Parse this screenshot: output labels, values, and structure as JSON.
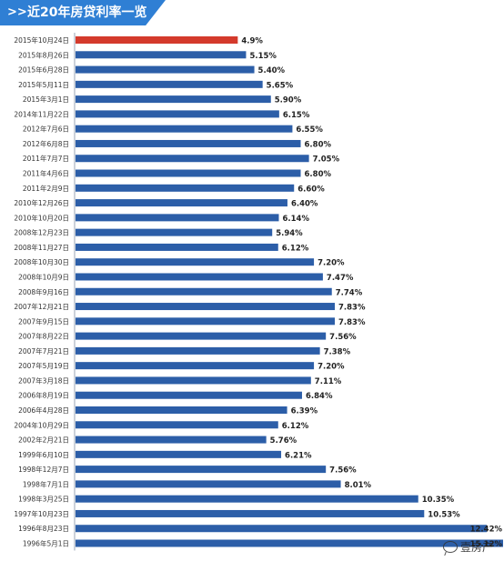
{
  "header": {
    "icon": "double-chevron-right-icon",
    "icon_glyph": ">>",
    "title": "近20年房贷利率一览"
  },
  "watermark": {
    "icon": "wechat-icon",
    "text": "壹房产"
  },
  "colors": {
    "banner": "#2f7fd4",
    "bar": "#2c5ea8",
    "highlight_bar": "#d43a2c"
  },
  "chart_data": {
    "type": "bar",
    "orientation": "horizontal",
    "title": "近20年房贷利率一览",
    "grid": false,
    "legend": "none",
    "xlim": [
      0,
      12.6
    ],
    "categories": [
      "2015年10月24日",
      "2015年8月26日",
      "2015年6月28日",
      "2015年5月11日",
      "2015年3月1日",
      "2014年11月22日",
      "2012年7月6日",
      "2012年6月8日",
      "2011年7月7日",
      "2011年4月6日",
      "2011年2月9日",
      "2010年12月26日",
      "2010年10月20日",
      "2008年12月23日",
      "2008年11月27日",
      "2008年10月30日",
      "2008年10月9日",
      "2008年9月16日",
      "2007年12月21日",
      "2007年9月15日",
      "2007年8月22日",
      "2007年7月21日",
      "2007年5月19日",
      "2007年3月18日",
      "2006年8月19日",
      "2006年4月28日",
      "2004年10月29日",
      "2002年2月21日",
      "1999年6月10日",
      "1998年12月7日",
      "1998年7月1日",
      "1998年3月25日",
      "1997年10月23日",
      "1996年8月23日",
      "1996年5月1日"
    ],
    "values": [
      4.9,
      5.15,
      5.4,
      5.65,
      5.9,
      6.15,
      6.55,
      6.8,
      7.05,
      6.8,
      6.6,
      6.4,
      6.14,
      5.94,
      6.12,
      7.2,
      7.47,
      7.74,
      7.83,
      7.83,
      7.56,
      7.38,
      7.2,
      7.11,
      6.84,
      6.39,
      6.12,
      5.76,
      6.21,
      7.56,
      8.01,
      10.35,
      10.53,
      12.42,
      15.12
    ],
    "value_labels": [
      "4.9%",
      "5.15%",
      "5.40%",
      "5.65%",
      "5.90%",
      "6.15%",
      "6.55%",
      "6.80%",
      "7.05%",
      "6.80%",
      "6.60%",
      "6.40%",
      "6.14%",
      "5.94%",
      "6.12%",
      "7.20%",
      "7.47%",
      "7.74%",
      "7.83%",
      "7.83%",
      "7.56%",
      "7.38%",
      "7.20%",
      "7.11%",
      "6.84%",
      "6.39%",
      "6.12%",
      "5.76%",
      "6.21%",
      "7.56%",
      "8.01%",
      "10.35%",
      "10.53%",
      "12.42%",
      "15.12%"
    ],
    "highlight_index": 0
  }
}
